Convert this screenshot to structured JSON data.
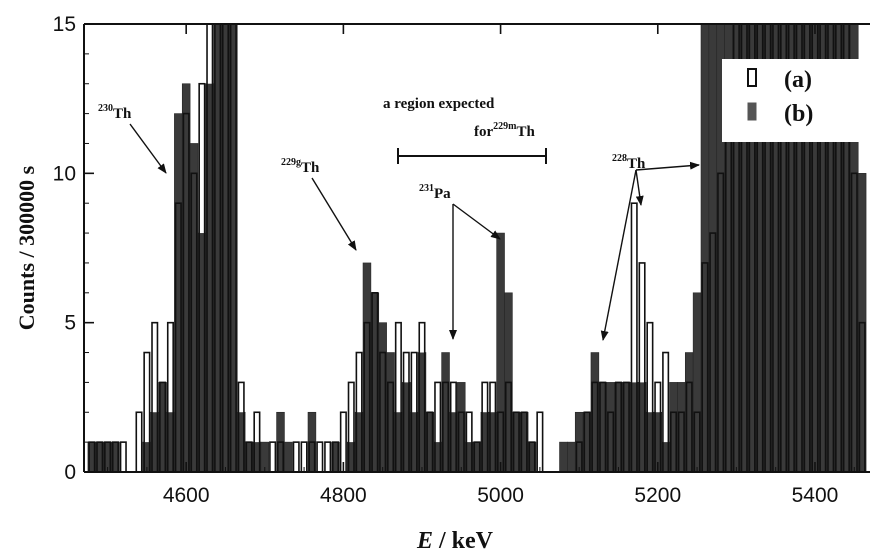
{
  "chart_data": {
    "type": "bar",
    "xlabel_var": "E",
    "xlabel_unit": " / keV",
    "ylabel": "Counts / 300000 s",
    "xlim": [
      4470,
      5470
    ],
    "ylim": [
      0,
      15
    ],
    "x_ticks": [
      4600,
      4800,
      5000,
      5200,
      5400
    ],
    "y_ticks": [
      0,
      5,
      10,
      15
    ],
    "bin_width": 10,
    "legend": {
      "placement": "top-right",
      "entries": [
        {
          "key": "a",
          "label": "(a)",
          "style": "open"
        },
        {
          "key": "b",
          "label": "(b)",
          "style": "filled"
        }
      ]
    },
    "series_a": {
      "name": "(a)",
      "x": [
        4480,
        4490,
        4500,
        4510,
        4520,
        4540,
        4550,
        4560,
        4570,
        4580,
        4590,
        4600,
        4610,
        4620,
        4630,
        4640,
        4650,
        4660,
        4670,
        4680,
        4690,
        4710,
        4720,
        4740,
        4750,
        4760,
        4770,
        4780,
        4790,
        4800,
        4810,
        4820,
        4830,
        4840,
        4850,
        4860,
        4870,
        4880,
        4890,
        4900,
        4910,
        4920,
        4930,
        4940,
        4950,
        4960,
        4970,
        4980,
        4990,
        5000,
        5010,
        5020,
        5030,
        5040,
        5050,
        5100,
        5110,
        5120,
        5130,
        5140,
        5150,
        5160,
        5170,
        5180,
        5190,
        5200,
        5210,
        5220,
        5230,
        5240,
        5250,
        5260,
        5270,
        5280,
        5290,
        5300,
        5310,
        5320,
        5330,
        5340,
        5350,
        5360,
        5370,
        5380,
        5390,
        5400,
        5410,
        5420,
        5430,
        5440,
        5450,
        5460
      ],
      "values": [
        1,
        1,
        1,
        1,
        1,
        2,
        4,
        5,
        3,
        5,
        9,
        12,
        10,
        13,
        15,
        15,
        15,
        15,
        3,
        1,
        2,
        1,
        1,
        1,
        1,
        1,
        1,
        1,
        1,
        2,
        3,
        4,
        5,
        6,
        4,
        3,
        5,
        4,
        4,
        5,
        2,
        3,
        3,
        3,
        2,
        2,
        1,
        3,
        3,
        2,
        3,
        2,
        2,
        1,
        2,
        1,
        2,
        3,
        3,
        2,
        3,
        3,
        9,
        7,
        5,
        3,
        4,
        2,
        2,
        3,
        2,
        7,
        8,
        10,
        12,
        15,
        15,
        15,
        15,
        15,
        15,
        15,
        15,
        15,
        15,
        15,
        15,
        15,
        15,
        15,
        10,
        5
      ]
    },
    "series_b": {
      "name": "(b)",
      "x": [
        4480,
        4490,
        4500,
        4510,
        4550,
        4560,
        4570,
        4580,
        4590,
        4600,
        4610,
        4620,
        4630,
        4640,
        4650,
        4660,
        4670,
        4680,
        4690,
        4700,
        4720,
        4730,
        4760,
        4790,
        4810,
        4820,
        4830,
        4840,
        4850,
        4860,
        4870,
        4880,
        4890,
        4900,
        4910,
        4920,
        4930,
        4940,
        4950,
        4960,
        4970,
        4980,
        4990,
        5000,
        5010,
        5020,
        5030,
        5040,
        5080,
        5090,
        5100,
        5110,
        5120,
        5130,
        5140,
        5150,
        5160,
        5170,
        5180,
        5190,
        5200,
        5210,
        5220,
        5230,
        5240,
        5250,
        5260,
        5270,
        5280,
        5290,
        5300,
        5310,
        5320,
        5330,
        5340,
        5350,
        5360,
        5370,
        5380,
        5390,
        5400,
        5410,
        5420,
        5430,
        5440,
        5450,
        5460
      ],
      "values": [
        1,
        1,
        1,
        1,
        1,
        2,
        3,
        2,
        12,
        13,
        11,
        8,
        13,
        15,
        15,
        15,
        2,
        1,
        1,
        1,
        2,
        1,
        2,
        1,
        1,
        2,
        7,
        6,
        5,
        4,
        2,
        3,
        2,
        4,
        2,
        1,
        4,
        2,
        3,
        1,
        1,
        2,
        2,
        8,
        6,
        2,
        2,
        1,
        1,
        1,
        2,
        2,
        4,
        3,
        3,
        3,
        3,
        3,
        3,
        2,
        2,
        1,
        3,
        3,
        4,
        6,
        15,
        15,
        15,
        15,
        15,
        15,
        15,
        15,
        15,
        15,
        15,
        15,
        15,
        15,
        15,
        15,
        15,
        15,
        15,
        15,
        10
      ]
    },
    "annotations": {
      "th230_pre": "230",
      "th230_main": "Th",
      "th229g_pre": "229g",
      "th229g_main": "Th",
      "region_line1": "a region expected",
      "region_line2": "for",
      "region_sup": "229m",
      "region_main": "Th",
      "pa231_pre": "231",
      "pa231_main": "Pa",
      "th228_pre": "228",
      "th228_main": "Th"
    },
    "colors": {
      "filled": "#3a3a3a",
      "filled_dark": "#262626",
      "open_fill": "#ffffff",
      "stroke": "#111111"
    }
  }
}
